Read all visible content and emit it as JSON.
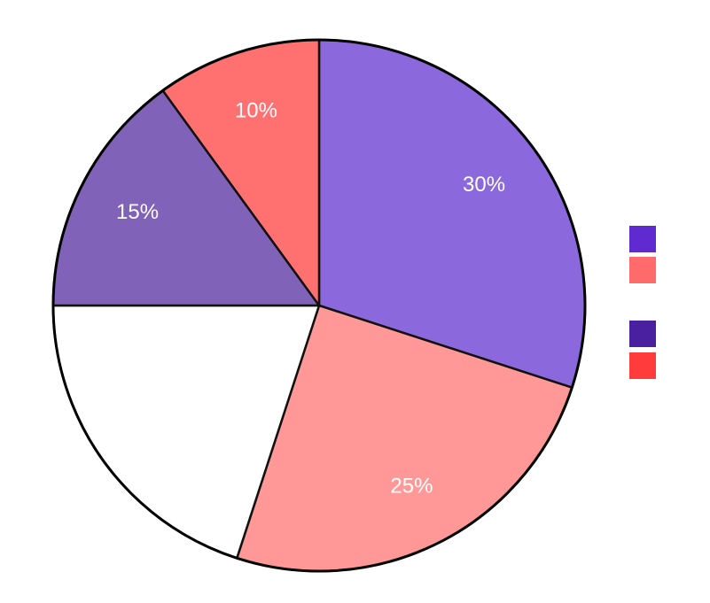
{
  "chart_data": {
    "type": "pie",
    "values": [
      30,
      25,
      20,
      15,
      10
    ],
    "value_labels": [
      "30%",
      "25%",
      null,
      "15%",
      "10%"
    ],
    "colors": [
      "#8b68db",
      "#ff9896",
      "#ffffff",
      "#8062b8",
      "#ff7070"
    ],
    "legend": {
      "position": "right",
      "colors": [
        "#5f2bd0",
        "#ff6b6b",
        "#4a1fa0",
        "#ff3b3b"
      ]
    }
  }
}
